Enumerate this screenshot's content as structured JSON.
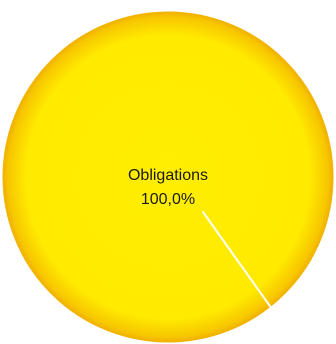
{
  "chart_data": {
    "type": "pie",
    "slices": [
      {
        "label": "Obligations",
        "percent_label": "100,0%",
        "value": 100.0,
        "color": "#ffee00",
        "edge_color": "#f2b400"
      }
    ],
    "divider_color": "#ffffff"
  }
}
